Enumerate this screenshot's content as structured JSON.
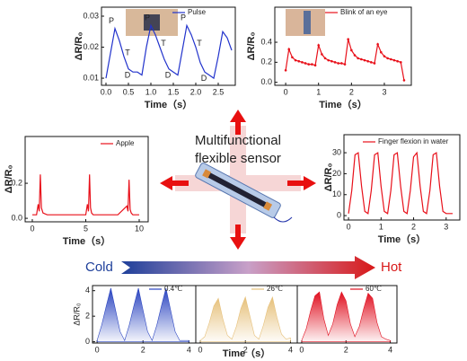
{
  "chart_data": [
    {
      "type": "line",
      "xlabel": "Time（s）",
      "ylabel": "ΔR/R₀",
      "x": [
        0,
        0.1,
        0.2,
        0.3,
        0.4,
        0.5,
        0.6,
        0.7,
        0.8,
        0.9,
        1.0,
        1.1,
        1.2,
        1.3,
        1.4,
        1.5,
        1.6,
        1.7,
        1.8,
        1.9,
        2.0,
        2.1,
        2.2,
        2.3,
        2.4,
        2.5,
        2.6,
        2.7,
        2.8
      ],
      "series": [
        {
          "name": "Pulse",
          "color": "#2233cc",
          "values": [
            0.01,
            0.018,
            0.026,
            0.022,
            0.017,
            0.013,
            0.012,
            0.012,
            0.011,
            0.02,
            0.027,
            0.024,
            0.02,
            0.016,
            0.013,
            0.012,
            0.011,
            0.019,
            0.027,
            0.024,
            0.02,
            0.015,
            0.012,
            0.011,
            0.01,
            0.017,
            0.025,
            0.023,
            0.019
          ]
        }
      ],
      "annotations": [
        "P",
        "T",
        "D",
        "P",
        "T",
        "D",
        "P",
        "T",
        "D"
      ],
      "xlim": [
        -0.1,
        2.88
      ],
      "ylim": [
        0.0077,
        0.0329
      ],
      "xticks": [
        {
          "value": 0,
          "label": "0.0"
        },
        0.5,
        {
          "value": 1,
          "label": "1.0"
        },
        1.5,
        {
          "value": 2,
          "label": "2.0"
        },
        2.5
      ],
      "yticks": [
        0.01,
        0.02,
        0.03
      ]
    },
    {
      "type": "line",
      "xlabel": "Time（s）",
      "ylabel": "ΔR/R₀",
      "markers": true,
      "x": [
        0,
        0.1,
        0.2,
        0.3,
        0.4,
        0.5,
        0.6,
        0.7,
        0.8,
        0.9,
        1.0,
        1.1,
        1.2,
        1.3,
        1.4,
        1.5,
        1.6,
        1.7,
        1.8,
        1.9,
        2.0,
        2.1,
        2.2,
        2.3,
        2.4,
        2.5,
        2.6,
        2.7,
        2.8,
        2.9,
        3.0,
        3.1,
        3.2,
        3.3,
        3.4,
        3.5,
        3.6
      ],
      "series": [
        {
          "name": "Blink of an eye",
          "color": "#e8101a",
          "values": [
            0.12,
            0.33,
            0.25,
            0.22,
            0.21,
            0.2,
            0.19,
            0.18,
            0.18,
            0.17,
            0.37,
            0.28,
            0.24,
            0.22,
            0.21,
            0.2,
            0.19,
            0.19,
            0.18,
            0.43,
            0.32,
            0.27,
            0.24,
            0.23,
            0.22,
            0.21,
            0.2,
            0.19,
            0.38,
            0.3,
            0.26,
            0.24,
            0.23,
            0.22,
            0.21,
            0.2,
            0.02
          ]
        }
      ],
      "xlim": [
        -0.33,
        3.82
      ],
      "ylim": [
        -0.03,
        0.75
      ],
      "xticks": [
        0,
        1,
        2,
        3
      ],
      "yticks": [
        {
          "value": 0,
          "label": "0.0"
        },
        0.2,
        0.4
      ]
    },
    {
      "type": "line",
      "xlabel": "Time（s）",
      "ylabel": "ΔR/R₀",
      "x": [
        0,
        0.4,
        0.55,
        0.65,
        0.75,
        0.85,
        1.0,
        1.4,
        3,
        5,
        5.15,
        5.25,
        5.35,
        5.45,
        5.55,
        5.7,
        6.2,
        8,
        8.85,
        8.95,
        9.05,
        9.15,
        9.25,
        9.4,
        9.9,
        10
      ],
      "series": [
        {
          "name": "Apple",
          "color": "#e8101a",
          "values": [
            0.02,
            0.02,
            0.08,
            0.04,
            0.25,
            0.06,
            0.03,
            0.02,
            0.02,
            0.02,
            0.08,
            0.04,
            0.25,
            0.06,
            0.03,
            0.02,
            0.02,
            0.02,
            0.07,
            0.04,
            0.22,
            0.05,
            0.03,
            0.02,
            0.02,
            0.02
          ]
        }
      ],
      "xlim": [
        -0.67,
        10.84
      ],
      "ylim": [
        -0.02,
        0.467
      ],
      "xticks": [
        0,
        5,
        10
      ],
      "yticks": [
        {
          "value": 0,
          "label": "0.0"
        },
        0.2
      ]
    },
    {
      "type": "line",
      "xlabel": "Time（s）",
      "ylabel": "ΔR/R₀",
      "x": [
        0,
        0.1,
        0.2,
        0.3,
        0.4,
        0.5,
        0.6,
        0.7,
        0.8,
        0.9,
        1.0,
        1.1,
        1.2,
        1.3,
        1.4,
        1.5,
        1.6,
        1.7,
        1.8,
        1.9,
        2.0,
        2.1,
        2.2,
        2.3,
        2.4,
        2.5,
        2.6,
        2.7,
        2.8,
        2.9,
        3.0,
        3.1,
        3.2
      ],
      "series": [
        {
          "name": "Finger flexion in water",
          "color": "#e8101a",
          "values": [
            1,
            12,
            29,
            30,
            14,
            2,
            1,
            12,
            29,
            30,
            14,
            2,
            1,
            12,
            29,
            30,
            14,
            2,
            1,
            12,
            28,
            30,
            14,
            2,
            1,
            12,
            29,
            30,
            14,
            2,
            1,
            1,
            1
          ]
        }
      ],
      "xlim": [
        -0.14,
        3.42
      ],
      "ylim": [
        -2.1,
        38.6
      ],
      "xticks": [
        0,
        1,
        2,
        3
      ],
      "yticks": [
        0,
        10,
        20,
        30
      ]
    },
    {
      "type": "area",
      "ylabel": "ΔR/R₀",
      "x": [
        0,
        0.2,
        0.4,
        0.6,
        0.8,
        1.0,
        1.2,
        1.4,
        1.6,
        1.8,
        2.0,
        2.2,
        2.4,
        2.6,
        2.8,
        3.0,
        3.2,
        3.4,
        3.6,
        3.8,
        4.0
      ],
      "series": [
        {
          "name": "0.4℃",
          "color": "#2a44c0",
          "values": [
            0.1,
            1.3,
            2.8,
            4.2,
            2.5,
            0.8,
            0.1,
            1.3,
            2.8,
            4.2,
            2.5,
            0.8,
            0.1,
            1.3,
            2.8,
            4.2,
            2.5,
            0.8,
            0.1,
            0.1,
            0.1
          ]
        }
      ],
      "xlim": [
        -0.2,
        4.3
      ],
      "ylim": [
        -0.1,
        4.4
      ],
      "xticks": [
        0,
        2,
        4
      ],
      "yticks": [
        0,
        2,
        4
      ]
    },
    {
      "type": "area",
      "xlabel": "Time（s）",
      "x": [
        0,
        0.2,
        0.4,
        0.6,
        0.8,
        1.0,
        1.2,
        1.4,
        1.6,
        1.8,
        2.0,
        2.2,
        2.4,
        2.6,
        2.8,
        3.0,
        3.2,
        3.4,
        3.6,
        3.8,
        4.0
      ],
      "series": [
        {
          "name": "26℃",
          "color": "#e6c07a",
          "values": [
            0.1,
            0.4,
            1.5,
            2.8,
            3.4,
            1.8,
            0.5,
            0.2,
            1.2,
            2.6,
            3.5,
            2.0,
            0.5,
            0.2,
            1.3,
            2.7,
            3.5,
            1.9,
            0.6,
            0.2,
            0.3
          ]
        }
      ],
      "xlim": [
        -0.2,
        4.3
      ],
      "ylim": [
        -0.1,
        4.4
      ],
      "xticks": [
        0,
        2,
        4
      ]
    },
    {
      "type": "area",
      "x": [
        0,
        0.2,
        0.4,
        0.6,
        0.8,
        1.0,
        1.2,
        1.4,
        1.6,
        1.8,
        2.0,
        2.2,
        2.4,
        2.6,
        2.8,
        3.0,
        3.2,
        3.4,
        3.6,
        3.8,
        4.0
      ],
      "series": [
        {
          "name": "60℃",
          "color": "#e01020",
          "values": [
            0.1,
            1.0,
            2.4,
            3.6,
            3.9,
            1.8,
            0.5,
            1.4,
            2.9,
            3.9,
            3.2,
            1.4,
            0.4,
            1.2,
            2.6,
            3.8,
            3.4,
            1.5,
            0.4,
            0.2,
            0.1
          ]
        }
      ],
      "xlim": [
        -0.2,
        4.3
      ],
      "ylim": [
        -0.1,
        4.4
      ],
      "xticks": [
        0,
        2,
        4
      ]
    }
  ],
  "center": {
    "lines": [
      "Multifunctional",
      "flexible sensor"
    ]
  },
  "temperature": {
    "cold": "Cold",
    "hot": "Hot"
  }
}
